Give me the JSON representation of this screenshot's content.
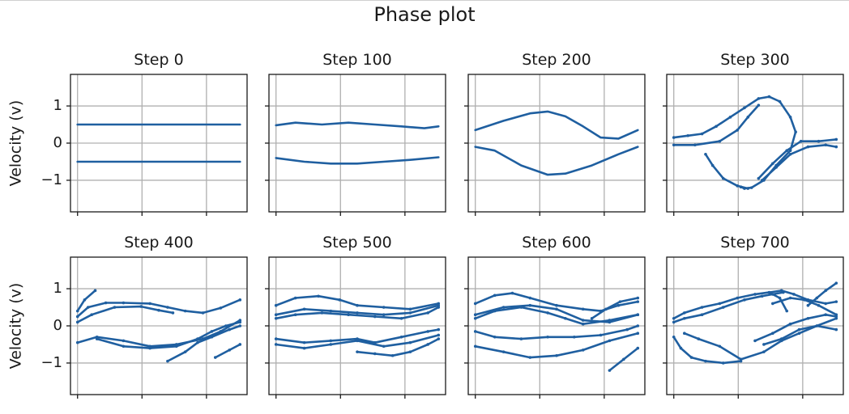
{
  "figure": {
    "title": "Phase plot"
  },
  "chart_data": {
    "type": "scatter",
    "title": "Phase plot",
    "ylabel": "Velocity (v)",
    "ylim": [
      -1.85,
      1.85
    ],
    "yticks": [
      1,
      0,
      -1
    ],
    "ytick_labels": [
      "1",
      "0",
      "−1"
    ],
    "xticks_count": 3,
    "xtick_labels_shown": false,
    "grid": true,
    "series_color": "#1f5fa0",
    "panels": [
      {
        "title": "Step 0",
        "curves": [
          {
            "x": [
              0.04,
              0.2,
              0.4,
              0.6,
              0.8,
              0.96
            ],
            "y": [
              0.5,
              0.5,
              0.5,
              0.5,
              0.5,
              0.5
            ]
          },
          {
            "x": [
              0.04,
              0.2,
              0.4,
              0.6,
              0.8,
              0.96
            ],
            "y": [
              -0.5,
              -0.5,
              -0.5,
              -0.5,
              -0.5,
              -0.5
            ]
          }
        ]
      },
      {
        "title": "Step 100",
        "curves": [
          {
            "x": [
              0.04,
              0.15,
              0.3,
              0.45,
              0.6,
              0.75,
              0.88,
              0.96
            ],
            "y": [
              0.48,
              0.55,
              0.5,
              0.55,
              0.5,
              0.45,
              0.4,
              0.45
            ]
          },
          {
            "x": [
              0.04,
              0.2,
              0.35,
              0.5,
              0.65,
              0.8,
              0.96
            ],
            "y": [
              -0.4,
              -0.5,
              -0.55,
              -0.55,
              -0.5,
              -0.45,
              -0.38
            ]
          }
        ]
      },
      {
        "title": "Step 200",
        "curves": [
          {
            "x": [
              0.04,
              0.2,
              0.35,
              0.45,
              0.55,
              0.65,
              0.75,
              0.85,
              0.96
            ],
            "y": [
              0.35,
              0.6,
              0.8,
              0.85,
              0.72,
              0.45,
              0.15,
              0.12,
              0.35
            ]
          },
          {
            "x": [
              0.04,
              0.15,
              0.3,
              0.45,
              0.55,
              0.7,
              0.85,
              0.96
            ],
            "y": [
              -0.1,
              -0.2,
              -0.6,
              -0.85,
              -0.82,
              -0.6,
              -0.3,
              -0.1
            ]
          }
        ]
      },
      {
        "title": "Step 300",
        "curves": [
          {
            "x": [
              0.04,
              0.12,
              0.2,
              0.28,
              0.36,
              0.44,
              0.52,
              0.58,
              0.64,
              0.7,
              0.73,
              0.7,
              0.62,
              0.55,
              0.48,
              0.44,
              0.42
            ],
            "y": [
              0.15,
              0.2,
              0.25,
              0.45,
              0.7,
              0.95,
              1.2,
              1.25,
              1.12,
              0.7,
              0.3,
              -0.2,
              -0.6,
              -1.0,
              -1.2,
              -1.22,
              -1.18
            ]
          },
          {
            "x": [
              0.04,
              0.16,
              0.3,
              0.4,
              0.46,
              0.52
            ],
            "y": [
              -0.05,
              -0.05,
              0.05,
              0.35,
              0.7,
              1.02
            ]
          },
          {
            "x": [
              0.46,
              0.4,
              0.32,
              0.26,
              0.22
            ],
            "y": [
              -1.22,
              -1.15,
              -0.95,
              -0.6,
              -0.3
            ]
          },
          {
            "x": [
              0.52,
              0.6,
              0.68,
              0.76,
              0.86,
              0.96
            ],
            "y": [
              -0.95,
              -0.55,
              -0.2,
              0.05,
              0.05,
              0.1
            ]
          },
          {
            "x": [
              0.54,
              0.62,
              0.7,
              0.8,
              0.9,
              0.96
            ],
            "y": [
              -1.0,
              -0.65,
              -0.3,
              -0.1,
              -0.05,
              -0.1
            ]
          }
        ]
      },
      {
        "title": "Step 400",
        "curves": [
          {
            "x": [
              0.04,
              0.1,
              0.2,
              0.3,
              0.45,
              0.55,
              0.65,
              0.75,
              0.85,
              0.96
            ],
            "y": [
              0.25,
              0.5,
              0.62,
              0.62,
              0.6,
              0.5,
              0.4,
              0.35,
              0.48,
              0.7
            ]
          },
          {
            "x": [
              0.04,
              0.12,
              0.25,
              0.4,
              0.5,
              0.58
            ],
            "y": [
              0.1,
              0.3,
              0.5,
              0.52,
              0.42,
              0.35
            ]
          },
          {
            "x": [
              0.04,
              0.08,
              0.14
            ],
            "y": [
              0.4,
              0.7,
              0.95
            ]
          },
          {
            "x": [
              0.04,
              0.15,
              0.3,
              0.45,
              0.6,
              0.75,
              0.85,
              0.96
            ],
            "y": [
              -0.45,
              -0.3,
              -0.4,
              -0.55,
              -0.5,
              -0.35,
              -0.15,
              0.15
            ]
          },
          {
            "x": [
              0.15,
              0.3,
              0.45,
              0.6,
              0.72,
              0.8,
              0.88,
              0.96
            ],
            "y": [
              -0.35,
              -0.55,
              -0.6,
              -0.55,
              -0.35,
              -0.15,
              0.0,
              0.1
            ]
          },
          {
            "x": [
              0.55,
              0.65,
              0.72,
              0.8,
              0.9,
              0.96
            ],
            "y": [
              -0.95,
              -0.7,
              -0.45,
              -0.3,
              -0.1,
              0.0
            ]
          },
          {
            "x": [
              0.82,
              0.9,
              0.96
            ],
            "y": [
              -0.85,
              -0.65,
              -0.5
            ]
          }
        ]
      },
      {
        "title": "Step 500",
        "curves": [
          {
            "x": [
              0.04,
              0.15,
              0.28,
              0.4,
              0.5,
              0.65,
              0.8,
              0.96
            ],
            "y": [
              0.55,
              0.75,
              0.8,
              0.7,
              0.55,
              0.5,
              0.45,
              0.6
            ]
          },
          {
            "x": [
              0.04,
              0.15,
              0.3,
              0.45,
              0.6,
              0.75,
              0.9,
              0.96
            ],
            "y": [
              0.2,
              0.3,
              0.35,
              0.3,
              0.25,
              0.2,
              0.35,
              0.5
            ]
          },
          {
            "x": [
              0.04,
              0.2,
              0.35,
              0.5,
              0.65,
              0.8,
              0.96
            ],
            "y": [
              0.3,
              0.45,
              0.4,
              0.35,
              0.3,
              0.35,
              0.55
            ]
          },
          {
            "x": [
              0.04,
              0.2,
              0.35,
              0.5,
              0.6,
              0.75,
              0.9,
              0.96
            ],
            "y": [
              -0.35,
              -0.45,
              -0.4,
              -0.35,
              -0.45,
              -0.3,
              -0.15,
              -0.1
            ]
          },
          {
            "x": [
              0.04,
              0.2,
              0.35,
              0.5,
              0.65,
              0.8,
              0.96
            ],
            "y": [
              -0.5,
              -0.6,
              -0.5,
              -0.4,
              -0.55,
              -0.45,
              -0.25
            ]
          },
          {
            "x": [
              0.5,
              0.6,
              0.7,
              0.8,
              0.9,
              0.96
            ],
            "y": [
              -0.7,
              -0.75,
              -0.8,
              -0.7,
              -0.5,
              -0.35
            ]
          }
        ]
      },
      {
        "title": "Step 600",
        "curves": [
          {
            "x": [
              0.04,
              0.15,
              0.25,
              0.35,
              0.5,
              0.65,
              0.75,
              0.85,
              0.96
            ],
            "y": [
              0.6,
              0.82,
              0.88,
              0.75,
              0.55,
              0.45,
              0.4,
              0.55,
              0.65
            ]
          },
          {
            "x": [
              0.04,
              0.15,
              0.3,
              0.45,
              0.55,
              0.65,
              0.8,
              0.96
            ],
            "y": [
              0.2,
              0.4,
              0.5,
              0.35,
              0.2,
              0.05,
              0.15,
              0.3
            ]
          },
          {
            "x": [
              0.04,
              0.2,
              0.35,
              0.5,
              0.65,
              0.8,
              0.96
            ],
            "y": [
              0.3,
              0.5,
              0.55,
              0.45,
              0.15,
              0.1,
              0.3
            ]
          },
          {
            "x": [
              0.04,
              0.15,
              0.3,
              0.45,
              0.6,
              0.75,
              0.9,
              0.96
            ],
            "y": [
              -0.15,
              -0.3,
              -0.35,
              -0.3,
              -0.3,
              -0.25,
              -0.1,
              0.0
            ]
          },
          {
            "x": [
              0.04,
              0.2,
              0.35,
              0.5,
              0.65,
              0.8,
              0.96
            ],
            "y": [
              -0.55,
              -0.7,
              -0.85,
              -0.8,
              -0.65,
              -0.4,
              -0.2
            ]
          },
          {
            "x": [
              0.7,
              0.78,
              0.86,
              0.96
            ],
            "y": [
              0.2,
              0.45,
              0.65,
              0.75
            ]
          },
          {
            "x": [
              0.8,
              0.88,
              0.96
            ],
            "y": [
              -1.2,
              -0.9,
              -0.6
            ]
          }
        ]
      },
      {
        "title": "Step 700",
        "curves": [
          {
            "x": [
              0.04,
              0.1,
              0.2,
              0.3,
              0.4,
              0.5,
              0.58,
              0.64,
              0.68
            ],
            "y": [
              0.2,
              0.35,
              0.5,
              0.6,
              0.75,
              0.85,
              0.9,
              0.75,
              0.4
            ]
          },
          {
            "x": [
              0.04,
              0.1,
              0.2,
              0.32,
              0.44,
              0.54,
              0.6,
              0.66
            ],
            "y": [
              0.1,
              0.2,
              0.3,
              0.5,
              0.7,
              0.8,
              0.85,
              0.9
            ]
          },
          {
            "x": [
              0.04,
              0.08,
              0.14,
              0.22,
              0.32,
              0.42
            ],
            "y": [
              -0.3,
              -0.6,
              -0.85,
              -0.95,
              -1.0,
              -0.95
            ]
          },
          {
            "x": [
              0.1,
              0.18,
              0.3,
              0.42,
              0.55,
              0.65,
              0.75,
              0.85,
              0.96
            ],
            "y": [
              -0.2,
              -0.35,
              -0.55,
              -0.9,
              -0.7,
              -0.4,
              -0.2,
              0.0,
              0.2
            ]
          },
          {
            "x": [
              0.5,
              0.6,
              0.7,
              0.8,
              0.9,
              0.96
            ],
            "y": [
              -0.4,
              -0.2,
              0.05,
              0.2,
              0.3,
              0.25
            ]
          },
          {
            "x": [
              0.55,
              0.65,
              0.75,
              0.85,
              0.96
            ],
            "y": [
              -0.5,
              -0.35,
              -0.1,
              0.0,
              -0.1
            ]
          },
          {
            "x": [
              0.58,
              0.65,
              0.72,
              0.8,
              0.9,
              0.96
            ],
            "y": [
              0.9,
              0.95,
              0.85,
              0.7,
              0.6,
              0.65
            ]
          },
          {
            "x": [
              0.6,
              0.7,
              0.78,
              0.86,
              0.96
            ],
            "y": [
              0.6,
              0.75,
              0.7,
              0.55,
              0.3
            ]
          },
          {
            "x": [
              0.8,
              0.85,
              0.9,
              0.96
            ],
            "y": [
              0.55,
              0.75,
              0.95,
              1.15
            ]
          }
        ]
      }
    ]
  }
}
